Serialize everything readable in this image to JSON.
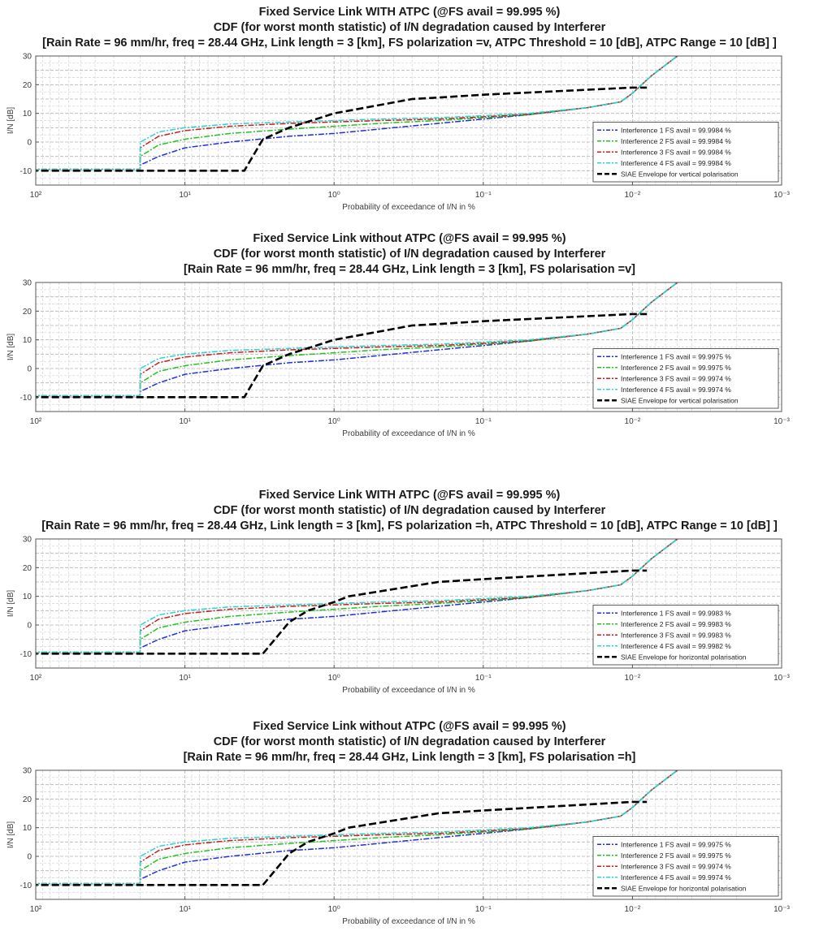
{
  "chart_data": [
    {
      "type": "line",
      "title": "Fixed Service Link WITH ATPC (@FS avail = 99.995 %)",
      "subtitle": "CDF (for worst month statistic) of I/N degradation caused by Interferer",
      "params": "[Rain Rate = 96 mm/hr, freq = 28.44 GHz, Link length = 3 [km], FS polarization =v, ATPC Threshold = 10 [dB], ATPC Range = 10 [dB] ]",
      "xlabel": "Probability of exceedance of I/N in %",
      "ylabel": "I/N [dB]",
      "x_scale": "log",
      "x_reversed": true,
      "xlim": [
        100,
        0.001
      ],
      "ylim": [
        -15,
        30
      ],
      "xticks": [
        "10^2",
        "10^1",
        "10^0",
        "10^-1",
        "10^-2",
        "10^-3"
      ],
      "yticks": [
        -10,
        0,
        10,
        20,
        30
      ],
      "grid": true,
      "legend_position": "lower-right",
      "series": [
        {
          "name": "Interference 1 FS avail  = 99.9984 %",
          "color": "#1f2fd6",
          "style": "dashdot",
          "x": [
            150,
            20,
            19.9,
            15,
            10,
            5,
            2,
            1,
            0.5,
            0.2,
            0.1,
            0.05,
            0.02,
            0.012,
            0.01,
            0.0075,
            0.005
          ],
          "y": [
            -9.5,
            -9.5,
            -8,
            -5,
            -2,
            0,
            2,
            3,
            4.5,
            6.5,
            8,
            9.5,
            12,
            14,
            17,
            23,
            30
          ]
        },
        {
          "name": "Interference 2 FS avail  = 99.9984 %",
          "color": "#22c41f",
          "style": "dashdot",
          "x": [
            150,
            20,
            19.9,
            15,
            10,
            5,
            2,
            1,
            0.5,
            0.2,
            0.1,
            0.05,
            0.02,
            0.012,
            0.01,
            0.0075,
            0.005
          ],
          "y": [
            -9.5,
            -9.5,
            -5,
            -1,
            1,
            3,
            4.5,
            5.5,
            6.5,
            7.5,
            8.5,
            9.5,
            12,
            14,
            17,
            23,
            30
          ]
        },
        {
          "name": "Interference 3 FS avail  = 99.9984 %",
          "color": "#c81e1e",
          "style": "dashdot",
          "x": [
            150,
            20,
            19.9,
            15,
            10,
            5,
            2,
            1,
            0.5,
            0.2,
            0.1,
            0.05,
            0.02,
            0.012,
            0.01,
            0.0075,
            0.005
          ],
          "y": [
            -9.5,
            -9.5,
            -2,
            2,
            4,
            5.5,
            6.5,
            7,
            7.5,
            8,
            8.8,
            9.7,
            12,
            14,
            17,
            23,
            30
          ]
        },
        {
          "name": "Interference 4 FS avail  = 99.9984 %",
          "color": "#26d4d4",
          "style": "dashdot",
          "x": [
            150,
            20,
            19.9,
            15,
            10,
            5,
            2,
            1,
            0.5,
            0.2,
            0.1,
            0.05,
            0.02,
            0.012,
            0.01,
            0.0075,
            0.005
          ],
          "y": [
            -9.5,
            -9.5,
            0,
            3.5,
            5,
            6.3,
            7,
            7.5,
            8,
            8.5,
            9.2,
            10,
            12,
            14,
            17,
            23,
            30
          ]
        },
        {
          "name": "SIAE Envelope for vertical polarisation",
          "color": "#000000",
          "style": "dash-thick",
          "x": [
            150,
            4,
            3,
            2,
            1,
            0.3,
            0.2,
            0.1,
            0.01,
            0.008
          ],
          "y": [
            -10,
            -10,
            1,
            5,
            10,
            15,
            15.5,
            16.5,
            19,
            19
          ]
        }
      ]
    },
    {
      "type": "line",
      "title": "Fixed Service Link without ATPC (@FS avail = 99.995 %)",
      "subtitle": "CDF (for worst month statistic) of I/N degradation caused by Interferer",
      "params": "[Rain Rate = 96 mm/hr, freq = 28.44 GHz, Link length = 3 [km],  FS polarisation =v]",
      "xlabel": "Probability of exceedance of I/N in %",
      "ylabel": "I/N [dB]",
      "x_scale": "log",
      "x_reversed": true,
      "xlim": [
        100,
        0.001
      ],
      "ylim": [
        -15,
        30
      ],
      "xticks": [
        "10^2",
        "10^1",
        "10^0",
        "10^-1",
        "10^-2",
        "10^-3"
      ],
      "yticks": [
        -10,
        0,
        10,
        20,
        30
      ],
      "grid": true,
      "legend_position": "lower-right",
      "series": [
        {
          "name": "Interference 1 FS avail  = 99.9975 %",
          "color": "#1f2fd6",
          "style": "dashdot",
          "x": [
            150,
            20,
            19.9,
            15,
            10,
            5,
            2,
            1,
            0.5,
            0.2,
            0.1,
            0.05,
            0.02,
            0.012,
            0.01,
            0.0075,
            0.005
          ],
          "y": [
            -9.5,
            -9.5,
            -8,
            -5,
            -2,
            0,
            2,
            3,
            4.5,
            6.5,
            8,
            9.5,
            12,
            14,
            17,
            23,
            30
          ]
        },
        {
          "name": "Interference 2 FS avail  = 99.9975 %",
          "color": "#22c41f",
          "style": "dashdot",
          "x": [
            150,
            20,
            19.9,
            15,
            10,
            5,
            2,
            1,
            0.5,
            0.2,
            0.1,
            0.05,
            0.02,
            0.012,
            0.01,
            0.0075,
            0.005
          ],
          "y": [
            -9.5,
            -9.5,
            -5,
            -1,
            1,
            3,
            4.5,
            5.5,
            6.5,
            7.5,
            8.5,
            9.5,
            12,
            14,
            17,
            23,
            30
          ]
        },
        {
          "name": "Interference 3 FS avail  = 99.9974 %",
          "color": "#c81e1e",
          "style": "dashdot",
          "x": [
            150,
            20,
            19.9,
            15,
            10,
            5,
            2,
            1,
            0.5,
            0.2,
            0.1,
            0.05,
            0.02,
            0.012,
            0.01,
            0.0075,
            0.005
          ],
          "y": [
            -9.5,
            -9.5,
            -2,
            2,
            4,
            5.5,
            6.5,
            7,
            7.5,
            8,
            8.8,
            9.7,
            12,
            14,
            17,
            23,
            30
          ]
        },
        {
          "name": "Interference 4 FS avail  = 99.9974 %",
          "color": "#26d4d4",
          "style": "dashdot",
          "x": [
            150,
            20,
            19.9,
            15,
            10,
            5,
            2,
            1,
            0.5,
            0.2,
            0.1,
            0.05,
            0.02,
            0.012,
            0.01,
            0.0075,
            0.005
          ],
          "y": [
            -9.5,
            -9.5,
            0,
            3.5,
            5,
            6.3,
            7,
            7.5,
            8,
            8.5,
            9.2,
            10,
            12,
            14,
            17,
            23,
            30
          ]
        },
        {
          "name": "SIAE Envelope for vertical polarisation",
          "color": "#000000",
          "style": "dash-thick",
          "x": [
            150,
            4,
            3,
            2,
            1,
            0.3,
            0.2,
            0.1,
            0.01,
            0.008
          ],
          "y": [
            -10,
            -10,
            1,
            5,
            10,
            15,
            15.5,
            16.5,
            19,
            19
          ]
        }
      ]
    },
    {
      "type": "line",
      "title": "Fixed Service Link WITH ATPC (@FS avail = 99.995 %)",
      "subtitle": "CDF (for worst month statistic) of I/N degradation caused by Interferer",
      "params": "[Rain Rate = 96 mm/hr, freq = 28.44 GHz, Link length = 3 [km], FS polarization =h, ATPC Threshold = 10 [dB], ATPC Range = 10 [dB] ]",
      "xlabel": "Probability of exceedance of I/N in %",
      "ylabel": "I/N [dB]",
      "x_scale": "log",
      "x_reversed": true,
      "xlim": [
        100,
        0.001
      ],
      "ylim": [
        -15,
        30
      ],
      "xticks": [
        "10^2",
        "10^1",
        "10^0",
        "10^-1",
        "10^-2",
        "10^-3"
      ],
      "yticks": [
        -10,
        0,
        10,
        20,
        30
      ],
      "grid": true,
      "legend_position": "lower-right",
      "series": [
        {
          "name": "Interference 1 FS avail  = 99.9983 %",
          "color": "#1f2fd6",
          "style": "dashdot",
          "x": [
            150,
            20,
            19.9,
            15,
            10,
            5,
            2,
            1,
            0.5,
            0.2,
            0.1,
            0.05,
            0.02,
            0.012,
            0.01,
            0.0075,
            0.005
          ],
          "y": [
            -9.5,
            -9.5,
            -8,
            -5,
            -2,
            0,
            2,
            3,
            4.5,
            6.5,
            8,
            9.5,
            12,
            14,
            17,
            23,
            30
          ]
        },
        {
          "name": "Interference 2 FS avail  = 99.9983 %",
          "color": "#22c41f",
          "style": "dashdot",
          "x": [
            150,
            20,
            19.9,
            15,
            10,
            5,
            2,
            1,
            0.5,
            0.2,
            0.1,
            0.05,
            0.02,
            0.012,
            0.01,
            0.0075,
            0.005
          ],
          "y": [
            -9.5,
            -9.5,
            -5,
            -1,
            1,
            3,
            4.5,
            5.5,
            6.5,
            7.5,
            8.5,
            9.5,
            12,
            14,
            17,
            23,
            30
          ]
        },
        {
          "name": "Interference 3 FS avail  = 99.9983 %",
          "color": "#c81e1e",
          "style": "dashdot",
          "x": [
            150,
            20,
            19.9,
            15,
            10,
            5,
            2,
            1,
            0.5,
            0.2,
            0.1,
            0.05,
            0.02,
            0.012,
            0.01,
            0.0075,
            0.005
          ],
          "y": [
            -9.5,
            -9.5,
            -2,
            2,
            4,
            5.5,
            6.5,
            7,
            7.5,
            8,
            8.8,
            9.7,
            12,
            14,
            17,
            23,
            30
          ]
        },
        {
          "name": "Interference 4 FS avail  = 99.9982 %",
          "color": "#26d4d4",
          "style": "dashdot",
          "x": [
            150,
            20,
            19.9,
            15,
            10,
            5,
            2,
            1,
            0.5,
            0.2,
            0.1,
            0.05,
            0.02,
            0.012,
            0.01,
            0.0075,
            0.005
          ],
          "y": [
            -9.5,
            -9.5,
            0,
            3.5,
            5,
            6.3,
            7,
            7.5,
            8,
            8.5,
            9.2,
            10,
            12,
            14,
            17,
            23,
            30
          ]
        },
        {
          "name": "SIAE Envelope for horizontal polarisation",
          "color": "#000000",
          "style": "dash-thick",
          "x": [
            150,
            3,
            2,
            1.5,
            1,
            0.8,
            0.2,
            0.1,
            0.01,
            0.008
          ],
          "y": [
            -10,
            -10,
            1,
            5,
            8,
            10,
            15,
            16,
            19,
            19
          ]
        }
      ]
    },
    {
      "type": "line",
      "title": "Fixed Service Link without ATPC (@FS avail = 99.995 %)",
      "subtitle": "CDF (for worst month statistic) of I/N degradation caused by Interferer",
      "params": "[Rain Rate = 96 mm/hr, freq = 28.44 GHz, Link length = 3 [km],  FS polarisation =h]",
      "xlabel": "Probability of exceedance of I/N in %",
      "ylabel": "I/N [dB]",
      "x_scale": "log",
      "x_reversed": true,
      "xlim": [
        100,
        0.001
      ],
      "ylim": [
        -15,
        30
      ],
      "xticks": [
        "10^2",
        "10^1",
        "10^0",
        "10^-1",
        "10^-2",
        "10^-3"
      ],
      "yticks": [
        -10,
        0,
        10,
        20,
        30
      ],
      "grid": true,
      "legend_position": "lower-right",
      "series": [
        {
          "name": "Interference 1 FS avail  = 99.9975 %",
          "color": "#1f2fd6",
          "style": "dashdot",
          "x": [
            150,
            20,
            19.9,
            15,
            10,
            5,
            2,
            1,
            0.5,
            0.2,
            0.1,
            0.05,
            0.02,
            0.012,
            0.01,
            0.0075,
            0.005
          ],
          "y": [
            -9.5,
            -9.5,
            -8,
            -5,
            -2,
            0,
            2,
            3,
            4.5,
            6.5,
            8,
            9.5,
            12,
            14,
            17,
            23,
            30
          ]
        },
        {
          "name": "Interference 2 FS avail  = 99.9975 %",
          "color": "#22c41f",
          "style": "dashdot",
          "x": [
            150,
            20,
            19.9,
            15,
            10,
            5,
            2,
            1,
            0.5,
            0.2,
            0.1,
            0.05,
            0.02,
            0.012,
            0.01,
            0.0075,
            0.005
          ],
          "y": [
            -9.5,
            -9.5,
            -5,
            -1,
            1,
            3,
            4.5,
            5.5,
            6.5,
            7.5,
            8.5,
            9.5,
            12,
            14,
            17,
            23,
            30
          ]
        },
        {
          "name": "Interference 3 FS avail  = 99.9974 %",
          "color": "#c81e1e",
          "style": "dashdot",
          "x": [
            150,
            20,
            19.9,
            15,
            10,
            5,
            2,
            1,
            0.5,
            0.2,
            0.1,
            0.05,
            0.02,
            0.012,
            0.01,
            0.0075,
            0.005
          ],
          "y": [
            -9.5,
            -9.5,
            -2,
            2,
            4,
            5.5,
            6.5,
            7,
            7.5,
            8,
            8.8,
            9.7,
            12,
            14,
            17,
            23,
            30
          ]
        },
        {
          "name": "Interference 4 FS avail  = 99.9974 %",
          "color": "#26d4d4",
          "style": "dashdot",
          "x": [
            150,
            20,
            19.9,
            15,
            10,
            5,
            2,
            1,
            0.5,
            0.2,
            0.1,
            0.05,
            0.02,
            0.012,
            0.01,
            0.0075,
            0.005
          ],
          "y": [
            -9.5,
            -9.5,
            0,
            3.5,
            5,
            6.3,
            7,
            7.5,
            8,
            8.5,
            9.2,
            10,
            12,
            14,
            17,
            23,
            30
          ]
        },
        {
          "name": "SIAE Envelope for horizontal polarisation",
          "color": "#000000",
          "style": "dash-thick",
          "x": [
            150,
            3,
            2,
            1.5,
            1,
            0.8,
            0.2,
            0.1,
            0.01,
            0.008
          ],
          "y": [
            -10,
            -10,
            1,
            5,
            8,
            10,
            15,
            16,
            19,
            19
          ]
        }
      ]
    }
  ]
}
